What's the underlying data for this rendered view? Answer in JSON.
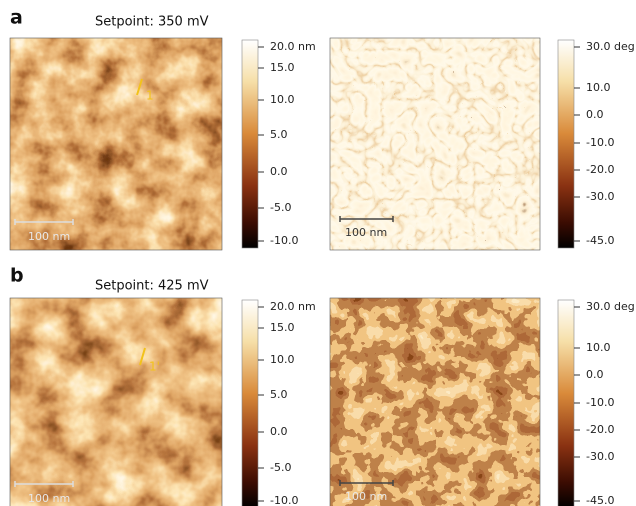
{
  "panels": [
    {
      "label": "a",
      "setpoint": "Setpoint: 350 mV",
      "height_image": {
        "scale_bar": "100 nm",
        "line_label": "1",
        "colorbar_ticks": [
          "20.0 nm",
          "15.0",
          "10.0",
          "5.0",
          "0.0",
          "-5.0",
          "-10.0"
        ]
      },
      "phase_image": {
        "scale_bar": "100 nm",
        "colorbar_ticks": [
          "30.0 deg",
          "10.0",
          "0.0",
          "-10.0",
          "-20.0",
          "-30.0",
          "-45.0"
        ]
      }
    },
    {
      "label": "b",
      "setpoint": "Setpoint: 425 mV",
      "height_image": {
        "scale_bar": "100 nm",
        "line_label": "1'",
        "colorbar_ticks": [
          "20.0 nm",
          "15.0",
          "10.0",
          "5.0",
          "0.0",
          "-5.0",
          "-10.0"
        ]
      },
      "phase_image": {
        "scale_bar": "100 nm",
        "colorbar_ticks": [
          "30.0 deg",
          "10.0",
          "0.0",
          "-10.0",
          "-20.0",
          "-30.0",
          "-45.0"
        ]
      }
    }
  ]
}
